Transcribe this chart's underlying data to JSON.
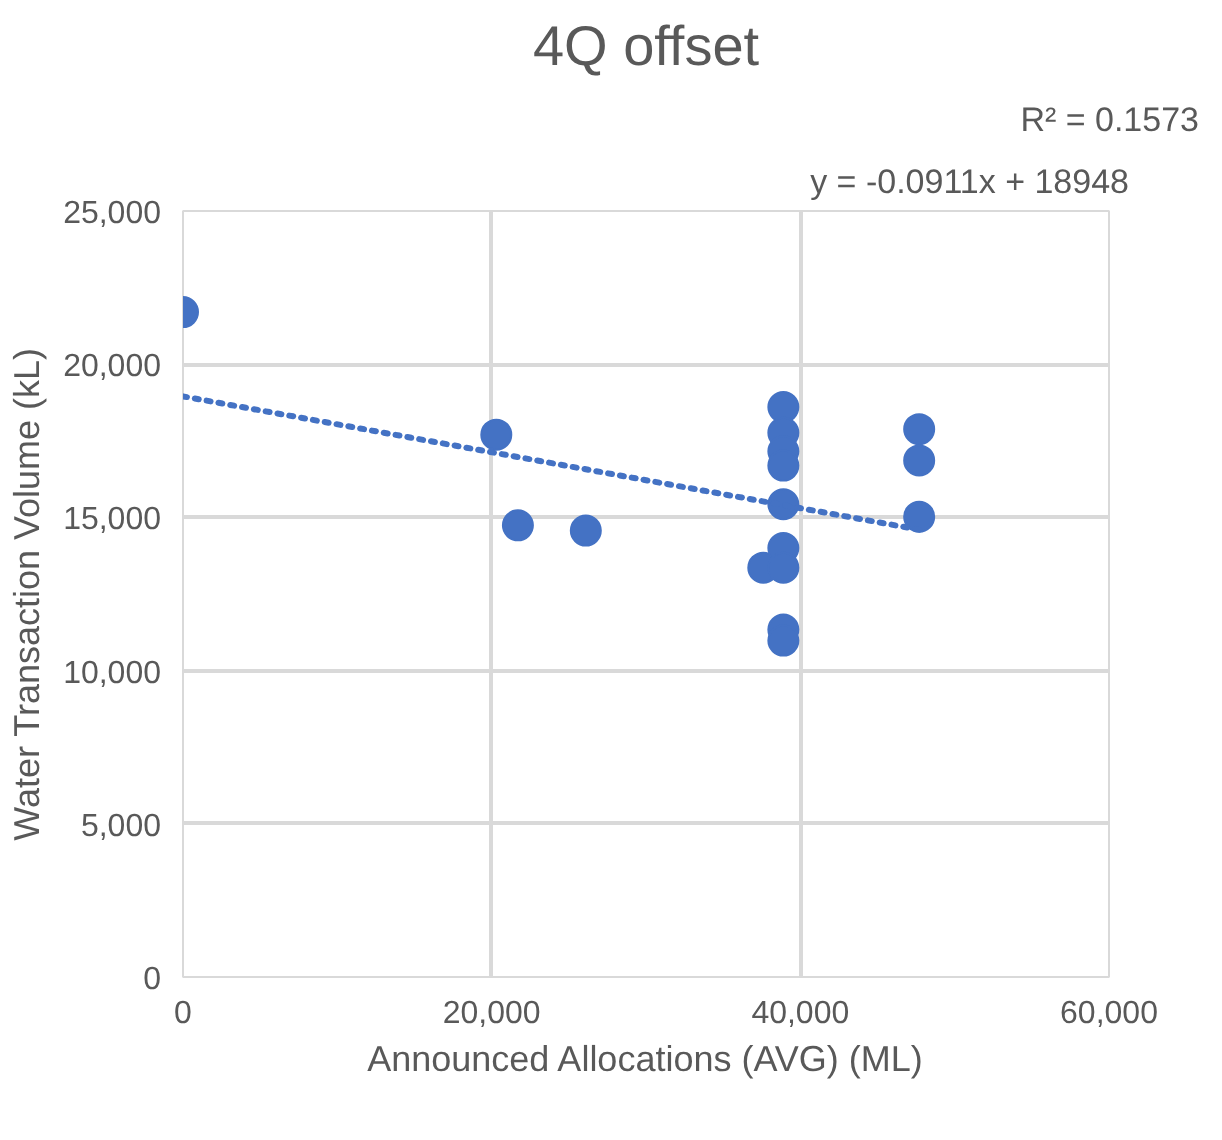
{
  "chart_data": {
    "type": "scatter",
    "title": "4Q offset",
    "xlabel": "Announced Allocations (AVG) (ML)",
    "ylabel": "Water Transaction Volume (kL)",
    "annotations": [
      "y = -0.0911x + 18948",
      "R² = 0.1573"
    ],
    "xlim": [
      0,
      60000
    ],
    "xticks": [
      {
        "value": 0,
        "label": "0"
      },
      {
        "value": 20000,
        "label": "20,000"
      },
      {
        "value": 40000,
        "label": "40,000"
      },
      {
        "value": 60000,
        "label": "60,000"
      }
    ],
    "ylim": [
      0,
      25000
    ],
    "yticks": [
      {
        "value": 0,
        "label": "0"
      },
      {
        "value": 5000,
        "label": "5,000"
      },
      {
        "value": 10000,
        "label": "10,000"
      },
      {
        "value": 15000,
        "label": "15,000"
      },
      {
        "value": 20000,
        "label": "20,000"
      },
      {
        "value": 25000,
        "label": "25,000"
      }
    ],
    "grid": true,
    "legend": false,
    "marker": "circle",
    "series": [
      {
        "color": "#4472c4",
        "x": [
          0,
          20300,
          21700,
          26100,
          37600,
          38900,
          38900,
          38900,
          38900,
          38900,
          38900,
          38900,
          38900,
          38900,
          47700,
          47700,
          47700
        ],
        "values": [
          21700,
          17700,
          14740,
          14570,
          13360,
          18600,
          17760,
          17160,
          16690,
          15430,
          14000,
          13360,
          11340,
          10980,
          17880,
          16860,
          15020
        ]
      },
      {
        "type": "line",
        "color": "#4472c4",
        "line_style": "dotted",
        "marker": "none",
        "x": [
          0,
          47700
        ],
        "values": [
          18950,
          14600
        ]
      }
    ]
  }
}
